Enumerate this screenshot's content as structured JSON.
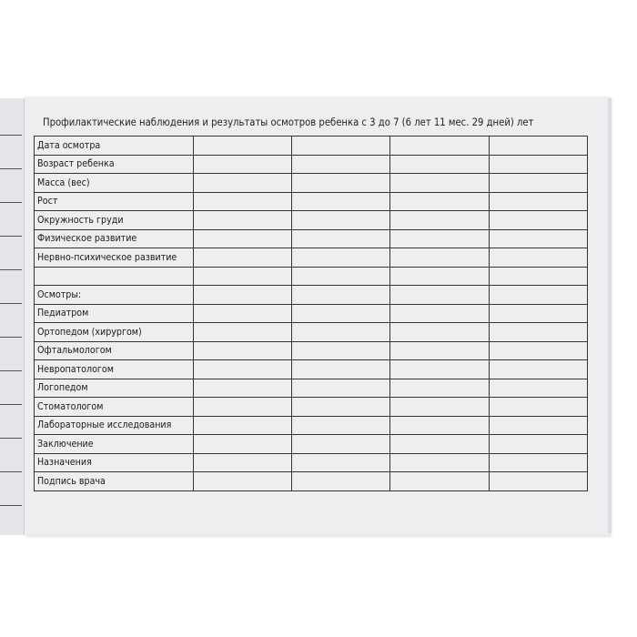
{
  "title": "Профилактические наблюдения и результаты осмотров ребенка с 3 до 7 (6 лет 11 мес. 29 дней) лет",
  "rows": [
    "Дата осмотра",
    "Возраст ребенка",
    "Масса (вес)",
    "Рост",
    "Окружность груди",
    "Физическое развитие",
    "Нервно-психическое развитие",
    "",
    "Осмотры:",
    "Педиатром",
    "Ортопедом (хирургом)",
    "Офтальмологом",
    "Невропатологом",
    "Логопедом",
    "Стоматологом",
    "Лабораторные исследования",
    "Заключение",
    "Назначения",
    "Подпись врача"
  ],
  "empty_columns": 4
}
